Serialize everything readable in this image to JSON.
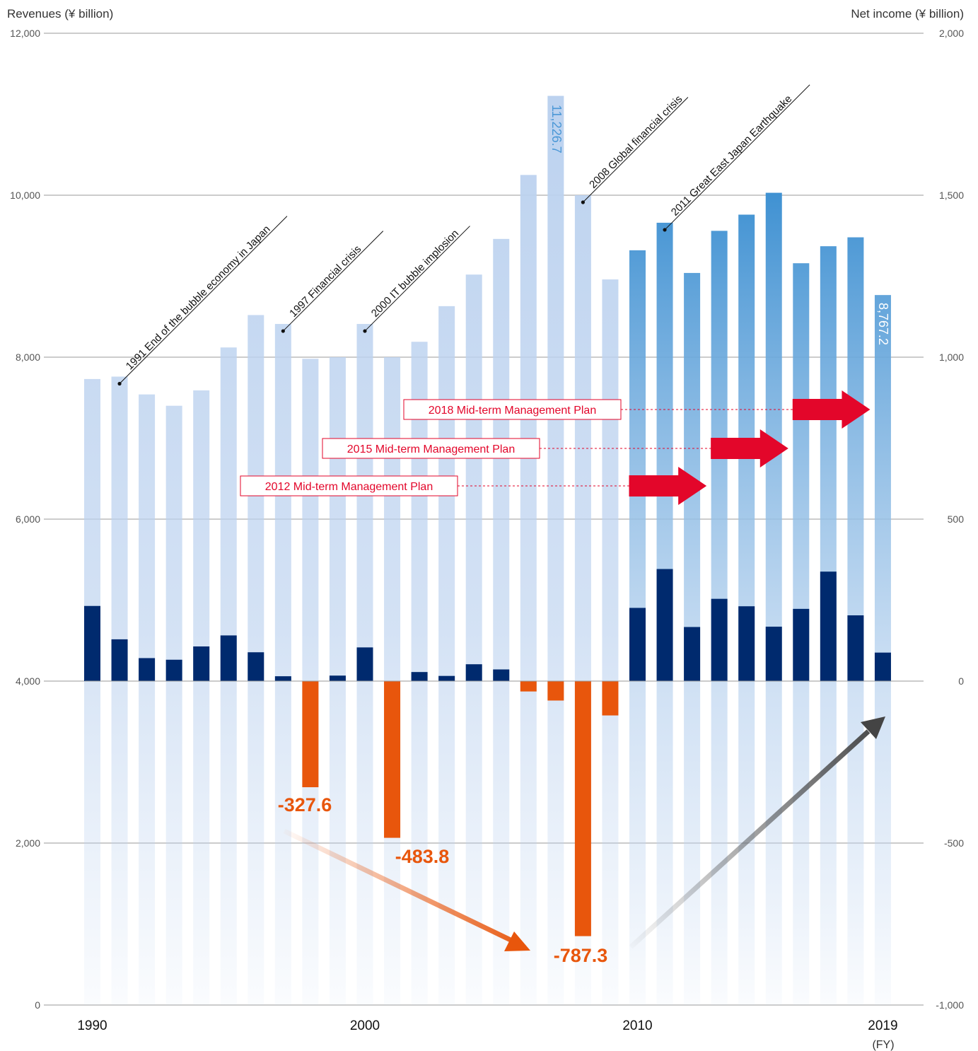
{
  "chart_data": {
    "type": "bar",
    "left_axis_title": "Revenues (¥ billion)",
    "right_axis_title": "Net income (¥ billion)",
    "left_ticks": [
      "0",
      "2,000",
      "4,000",
      "6,000",
      "8,000",
      "10,000",
      "12,000"
    ],
    "right_ticks": [
      "-1,000",
      "-500",
      "0",
      "500",
      "1,000",
      "1,500",
      "2,000"
    ],
    "left_ylim": [
      0,
      12000
    ],
    "right_ylim": [
      -1000,
      2000
    ],
    "x_labels": [
      "1990",
      "2000",
      "2010",
      "2019"
    ],
    "x_unit": "(FY)",
    "years": [
      1990,
      1991,
      1992,
      1993,
      1994,
      1995,
      1996,
      1997,
      1998,
      1999,
      2000,
      2001,
      2002,
      2003,
      2004,
      2005,
      2006,
      2007,
      2008,
      2009,
      2010,
      2011,
      2012,
      2013,
      2014,
      2015,
      2016,
      2017,
      2018,
      2019
    ],
    "revenues": [
      7730,
      7760,
      7540,
      7400,
      7590,
      8120,
      8520,
      8410,
      7980,
      8000,
      8410,
      8000,
      8190,
      8630,
      9020,
      9460,
      10250,
      11226.7,
      10000,
      8960,
      9320,
      9660,
      9040,
      9560,
      9760,
      10030,
      9160,
      9370,
      9480,
      8767.2
    ],
    "net_income": [
      232,
      129,
      71,
      66,
      107,
      141,
      89,
      15,
      -327.6,
      17,
      104,
      -483.8,
      28,
      16,
      52,
      36,
      -32,
      -60,
      -787.3,
      -106,
      226,
      346,
      167,
      254,
      231,
      168,
      223,
      338,
      203,
      88
    ],
    "series": [
      {
        "name": "Revenues",
        "color_early": "#bcd2ef",
        "color_late": "#4394d3"
      },
      {
        "name": "Net income",
        "color_positive": "#002a6e",
        "color_negative": "#e8560c"
      }
    ],
    "annotations": {
      "peak_revenue": "11,226.7",
      "last_revenue": "8,767.2",
      "losses": [
        "-327.6",
        "-483.8",
        "-787.3"
      ],
      "events": [
        {
          "year": 1991,
          "text": "1991 End of the bubble economy in Japan"
        },
        {
          "year": 1997,
          "text": "1997 Financial crisis"
        },
        {
          "year": 2000,
          "text": "2000 IT bubble implosion"
        },
        {
          "year": 2008,
          "text": "2008 Global financial crisis"
        },
        {
          "year": 2011,
          "text": "2011 Great East Japan Earthquake"
        }
      ],
      "plans": [
        {
          "text": "2018 Mid-term Management Plan",
          "start": 2016,
          "end": 2019
        },
        {
          "text": "2015 Mid-term Management Plan",
          "start": 2013,
          "end": 2016
        },
        {
          "text": "2012 Mid-term Management Plan",
          "start": 2010,
          "end": 2013
        }
      ]
    },
    "colors": {
      "plan_red": "#e3062a",
      "loss_orange": "#e8560c",
      "grid": "#999999"
    },
    "grid": true,
    "legend": "none"
  }
}
